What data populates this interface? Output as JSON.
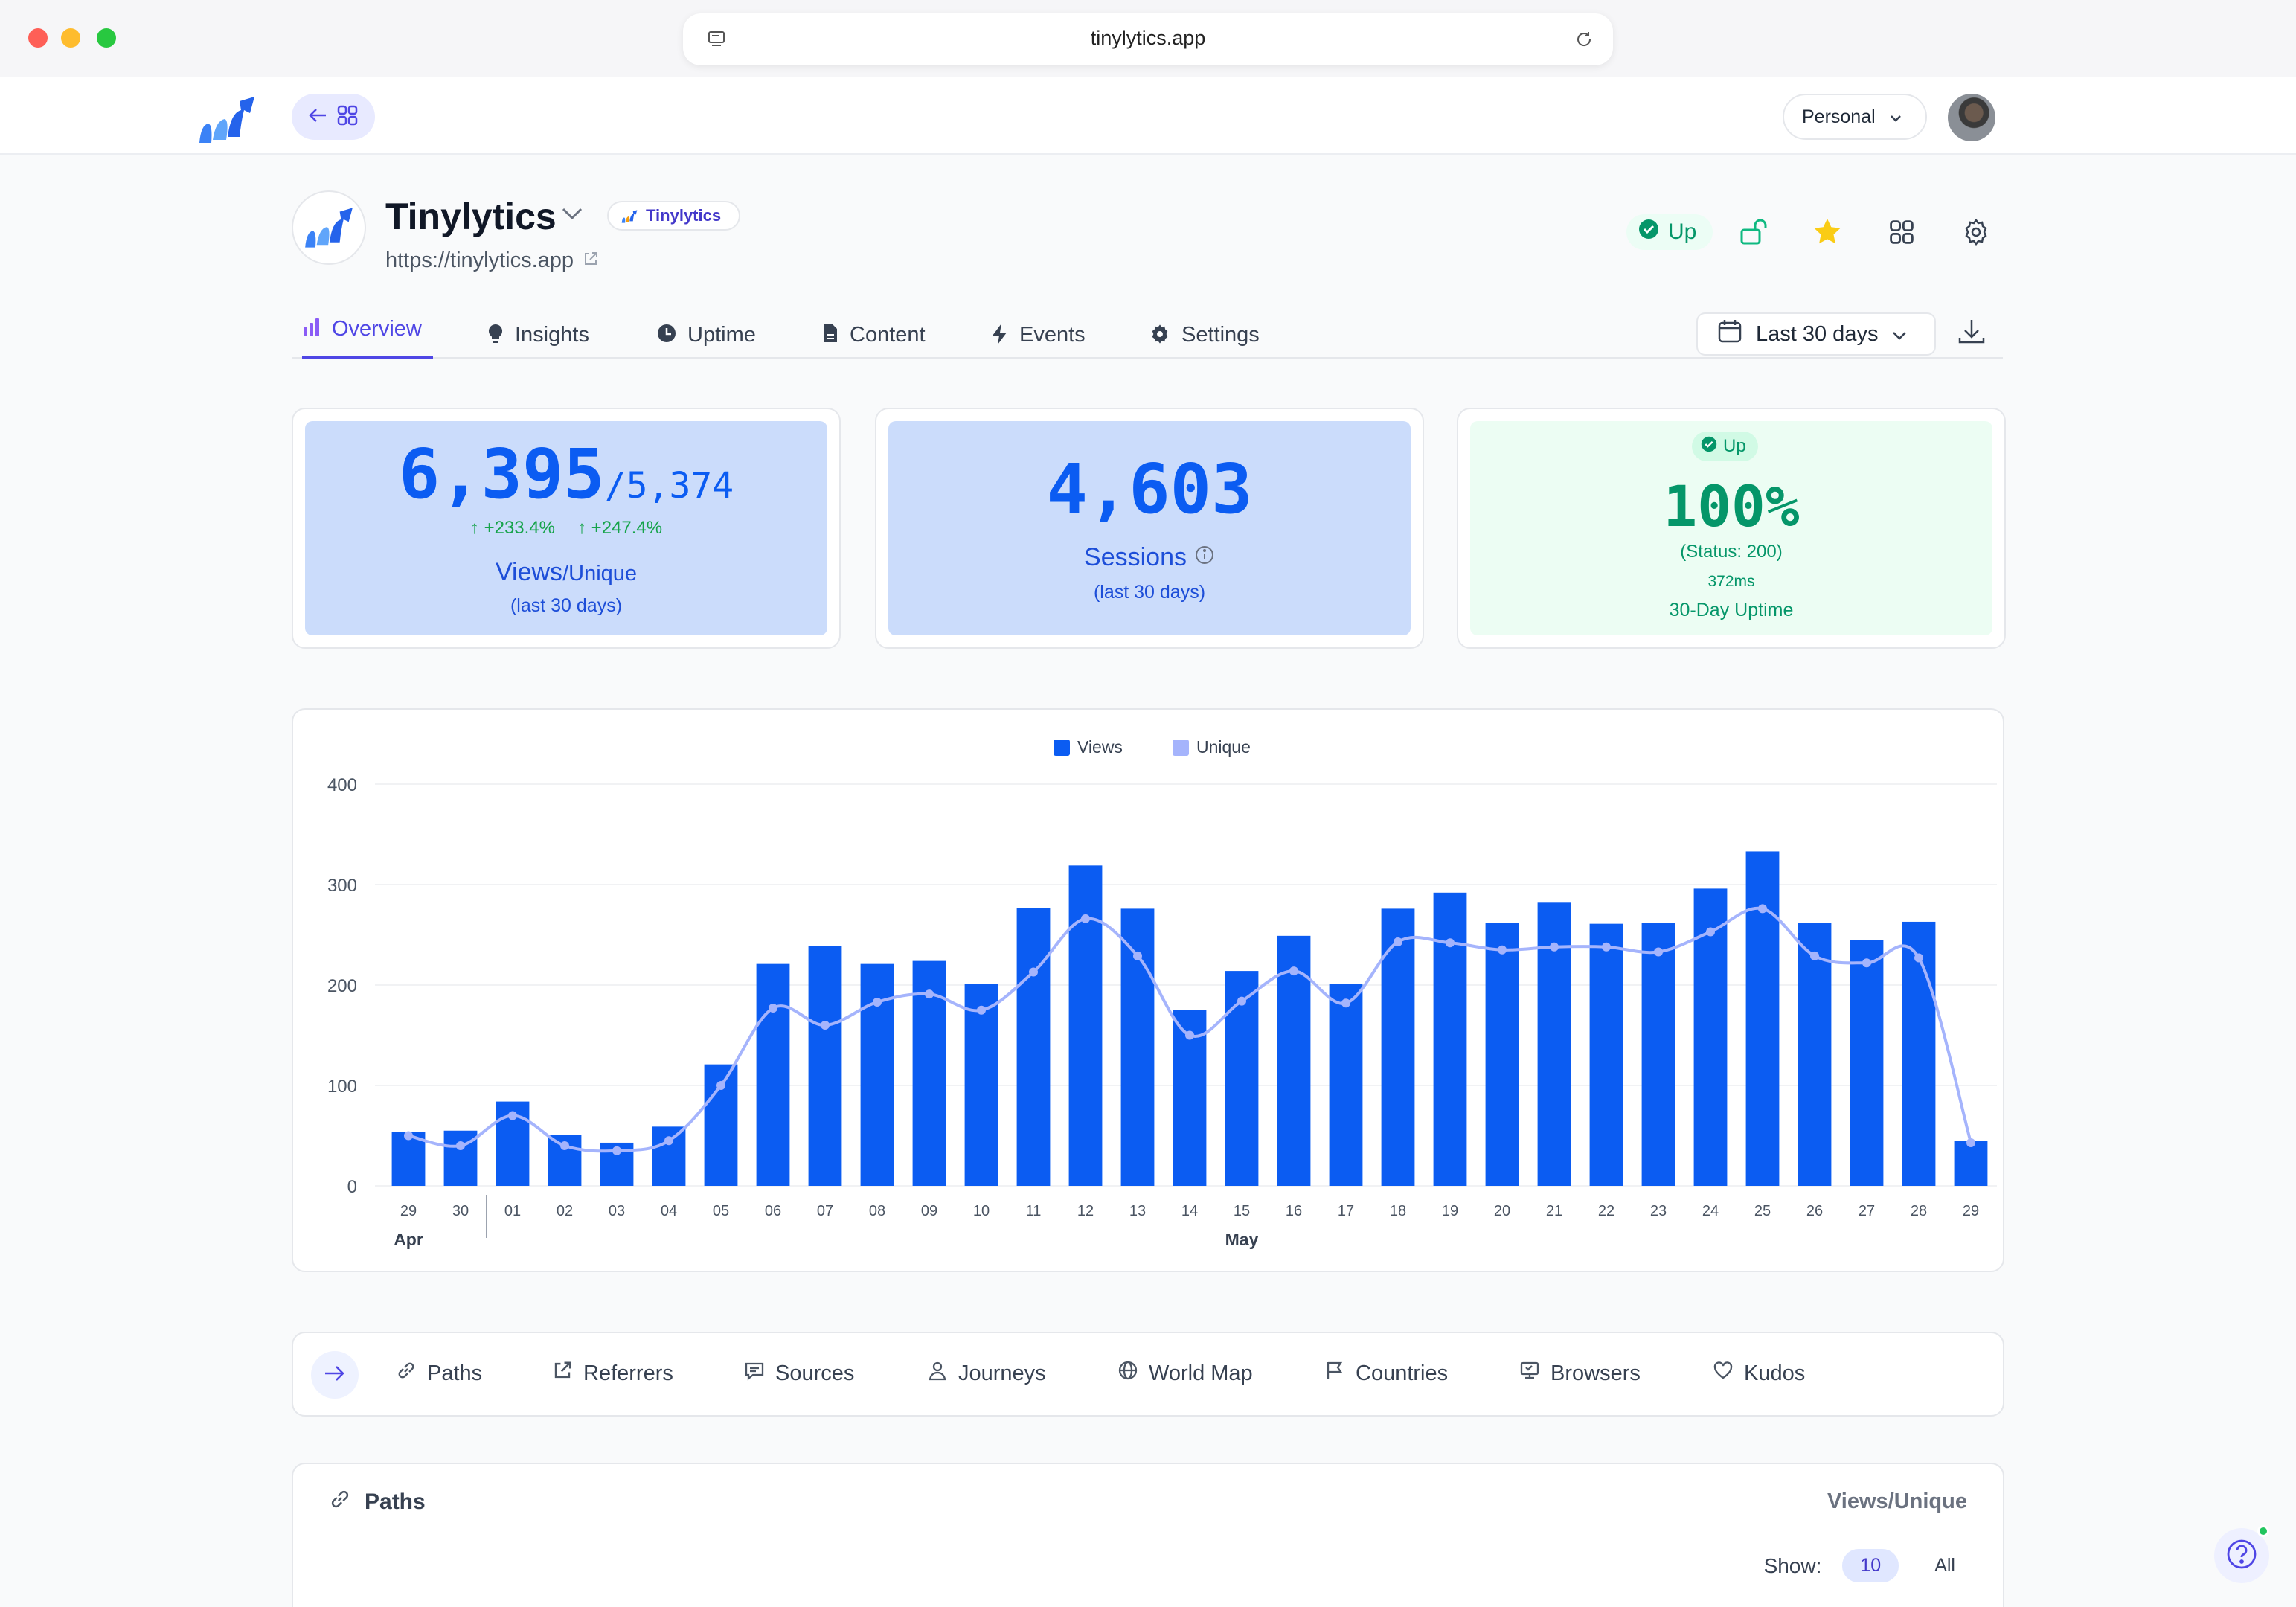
{
  "browser": {
    "url": "tinylytics.app"
  },
  "appbar": {
    "workspace": "Personal"
  },
  "project": {
    "name": "Tinylytics",
    "badge": "Tinylytics",
    "url": "https://tinylytics.app",
    "status": "Up"
  },
  "tabs": [
    {
      "label": "Overview",
      "icon": "bar-chart-icon",
      "active": true
    },
    {
      "label": "Insights",
      "icon": "lightbulb-icon"
    },
    {
      "label": "Uptime",
      "icon": "clock-icon"
    },
    {
      "label": "Content",
      "icon": "document-icon"
    },
    {
      "label": "Events",
      "icon": "bolt-icon"
    },
    {
      "label": "Settings",
      "icon": "gear-icon"
    }
  ],
  "date_range": "Last 30 days",
  "stats": {
    "views": {
      "value": "6,395",
      "unique": "/5,374",
      "views_delta": "+233.4%",
      "unique_delta": "+247.4%",
      "label": "Views",
      "label_suffix": "/Unique",
      "period": "(last 30 days)"
    },
    "sessions": {
      "value": "4,603",
      "label": "Sessions",
      "period": "(last 30 days)"
    },
    "uptime": {
      "badge": "Up",
      "value": "100%",
      "status": "(Status: 200)",
      "latency": "372ms",
      "label": "30-Day Uptime"
    }
  },
  "chart_data": {
    "type": "bar",
    "categories": [
      "29",
      "30",
      "01",
      "02",
      "03",
      "04",
      "05",
      "06",
      "07",
      "08",
      "09",
      "10",
      "11",
      "12",
      "13",
      "14",
      "15",
      "16",
      "17",
      "18",
      "19",
      "20",
      "21",
      "22",
      "23",
      "24",
      "25",
      "26",
      "27",
      "28",
      "29"
    ],
    "month_labels": [
      "Apr",
      "May"
    ],
    "series": [
      {
        "name": "Views",
        "type": "bar",
        "color": "#0b5cf2",
        "values": [
          54,
          55,
          84,
          51,
          43,
          59,
          121,
          221,
          239,
          221,
          224,
          201,
          277,
          319,
          276,
          175,
          214,
          249,
          201,
          276,
          292,
          262,
          282,
          261,
          262,
          296,
          333,
          262,
          245,
          263,
          45
        ]
      },
      {
        "name": "Unique",
        "type": "line",
        "color": "#a5b4fc",
        "values": [
          50,
          40,
          70,
          40,
          35,
          45,
          100,
          177,
          160,
          183,
          191,
          175,
          213,
          266,
          229,
          150,
          184,
          214,
          182,
          243,
          242,
          235,
          238,
          238,
          233,
          253,
          276,
          229,
          222,
          227,
          43
        ]
      }
    ],
    "ylim": [
      0,
      400
    ],
    "yticks": [
      0,
      100,
      200,
      300,
      400
    ],
    "legend": "top-center"
  },
  "subtabs": [
    {
      "label": "Paths",
      "icon": "link-icon"
    },
    {
      "label": "Referrers",
      "icon": "external-link-icon"
    },
    {
      "label": "Sources",
      "icon": "message-icon"
    },
    {
      "label": "Journeys",
      "icon": "user-icon"
    },
    {
      "label": "World Map",
      "icon": "globe-icon"
    },
    {
      "label": "Countries",
      "icon": "flag-icon"
    },
    {
      "label": "Browsers",
      "icon": "browser-icon"
    },
    {
      "label": "Kudos",
      "icon": "heart-icon"
    }
  ],
  "paths_panel": {
    "title": "Paths",
    "column": "Views/Unique",
    "show_label": "Show:",
    "show_selected": "10",
    "show_all": "All"
  }
}
